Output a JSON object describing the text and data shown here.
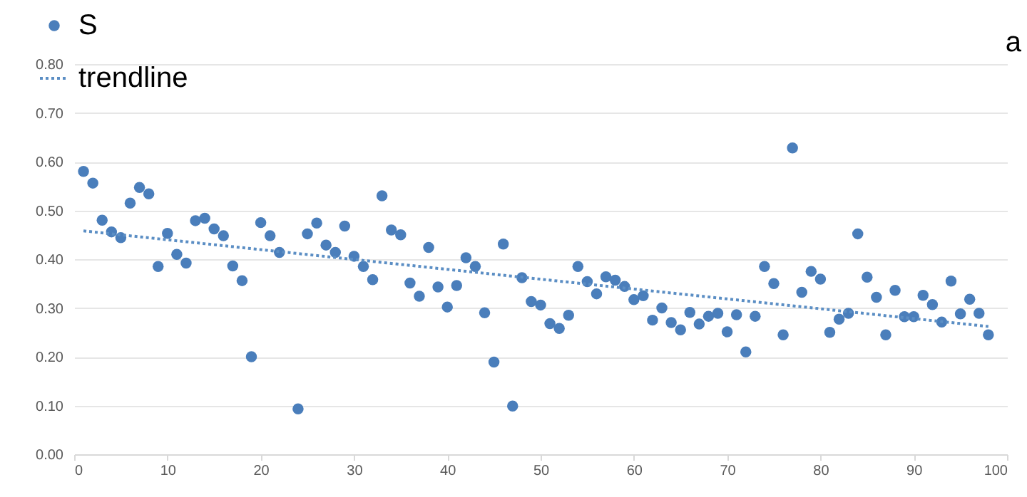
{
  "chart_data": {
    "type": "scatter",
    "annotations": [
      "a"
    ],
    "xlim": [
      0,
      100
    ],
    "xticks": [
      0,
      10,
      20,
      30,
      40,
      50,
      60,
      70,
      80,
      90,
      100
    ],
    "ylim": [
      0,
      0.8
    ],
    "yticks": [
      {
        "value": 0,
        "label": "0.00"
      },
      {
        "value": 0.1,
        "label": "0.10"
      },
      {
        "value": 0.2,
        "label": "0.20"
      },
      {
        "value": 0.3,
        "label": "0.30"
      },
      {
        "value": 0.4,
        "label": "0.40"
      },
      {
        "value": 0.5,
        "label": "0.50"
      },
      {
        "value": 0.6,
        "label": "0.60"
      },
      {
        "value": 0.7,
        "label": "0.70"
      },
      {
        "value": 0.8,
        "label": "0.80"
      }
    ],
    "grid": "y",
    "legend": "top left",
    "series": [
      {
        "name": "S",
        "marker": "circle",
        "color": "#4a7ebb",
        "x": [
          1,
          2,
          3,
          4,
          5,
          6,
          7,
          8,
          9,
          10,
          11,
          12,
          13,
          14,
          15,
          16,
          17,
          18,
          19,
          20,
          21,
          22,
          24,
          25,
          26,
          27,
          28,
          29,
          30,
          31,
          32,
          33,
          34,
          35,
          36,
          37,
          38,
          39,
          40,
          41,
          42,
          43,
          44,
          45,
          46,
          47,
          48,
          49,
          50,
          51,
          52,
          53,
          54,
          55,
          56,
          57,
          58,
          59,
          60,
          61,
          62,
          63,
          64,
          65,
          66,
          67,
          68,
          69,
          70,
          71,
          72,
          73,
          74,
          75,
          76,
          77,
          78,
          79,
          80,
          81,
          82,
          83,
          84,
          85,
          86,
          87,
          88,
          89,
          90,
          91,
          92,
          93,
          94,
          95,
          96,
          97,
          98
        ],
        "values": [
          0.58,
          0.556,
          0.48,
          0.456,
          0.444,
          0.515,
          0.547,
          0.534,
          0.385,
          0.453,
          0.41,
          0.392,
          0.479,
          0.484,
          0.462,
          0.448,
          0.386,
          0.356,
          0.2,
          0.475,
          0.448,
          0.414,
          0.093,
          0.452,
          0.474,
          0.429,
          0.414,
          0.468,
          0.406,
          0.385,
          0.358,
          0.53,
          0.46,
          0.45,
          0.351,
          0.324,
          0.424,
          0.343,
          0.302,
          0.346,
          0.403,
          0.385,
          0.29,
          0.189,
          0.431,
          0.099,
          0.362,
          0.313,
          0.306,
          0.268,
          0.258,
          0.285,
          0.385,
          0.354,
          0.329,
          0.364,
          0.357,
          0.344,
          0.317,
          0.325,
          0.275,
          0.3,
          0.27,
          0.255,
          0.291,
          0.267,
          0.283,
          0.289,
          0.251,
          0.286,
          0.21,
          0.283,
          0.385,
          0.35,
          0.245,
          0.628,
          0.332,
          0.375,
          0.359,
          0.25,
          0.277,
          0.289,
          0.452,
          0.363,
          0.322,
          0.245,
          0.336,
          0.282,
          0.282,
          0.326,
          0.307,
          0.271,
          0.355,
          0.288,
          0.318,
          0.289,
          0.245
        ]
      },
      {
        "name": "trendline",
        "type": "line",
        "line_style": "dotted",
        "color": "#5b8ec4",
        "x": [
          1,
          98
        ],
        "values": [
          0.458,
          0.262
        ]
      }
    ]
  }
}
